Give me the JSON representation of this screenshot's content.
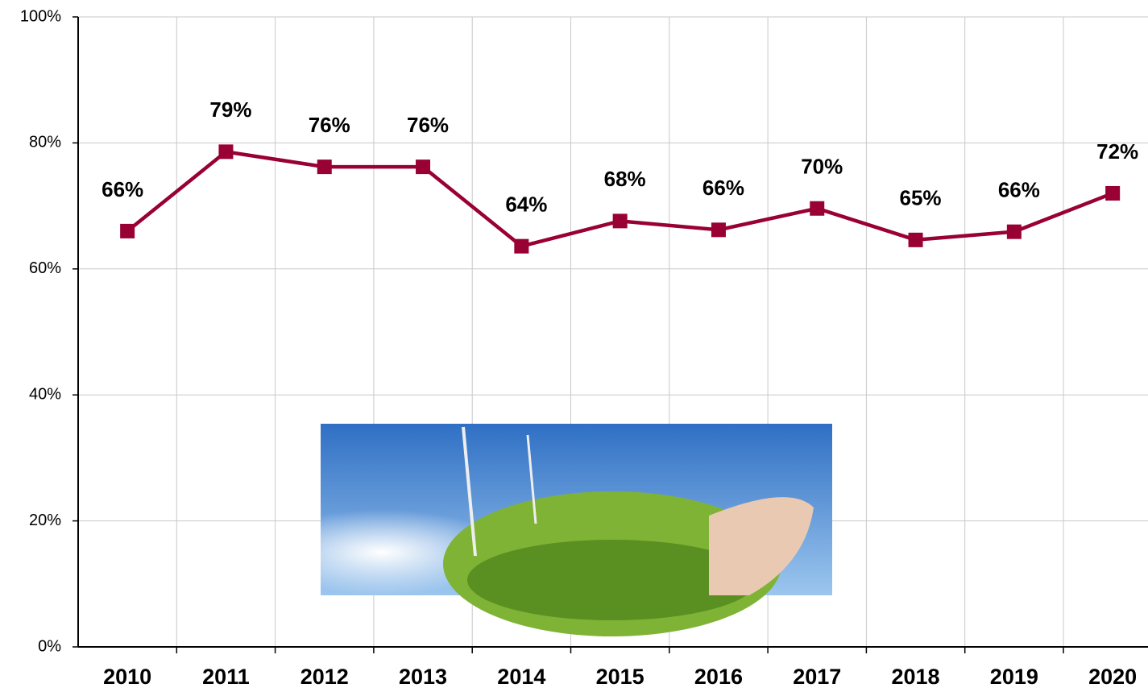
{
  "chart_data": {
    "type": "line",
    "categories": [
      "2010",
      "2011",
      "2012",
      "2013",
      "2014",
      "2015",
      "2016",
      "2017",
      "2018",
      "2019",
      "2020"
    ],
    "series": [
      {
        "color": "#990033",
        "values": [
          66,
          78.6,
          76.2,
          76.2,
          63.6,
          67.6,
          66.2,
          69.6,
          64.6,
          65.9,
          72
        ],
        "value_labels": [
          "66%",
          "79%",
          "76%",
          "76%",
          "64%",
          "68%",
          "66%",
          "70%",
          "65%",
          "66%",
          "72%"
        ]
      }
    ],
    "ylim": [
      0,
      100
    ],
    "yticks": [
      {
        "value": 0,
        "label": "0%"
      },
      {
        "value": 20,
        "label": "20%"
      },
      {
        "value": 40,
        "label": "40%"
      },
      {
        "value": 60,
        "label": "60%"
      },
      {
        "value": 80,
        "label": "80%"
      },
      {
        "value": 100,
        "label": "100%"
      }
    ],
    "grid": true
  }
}
